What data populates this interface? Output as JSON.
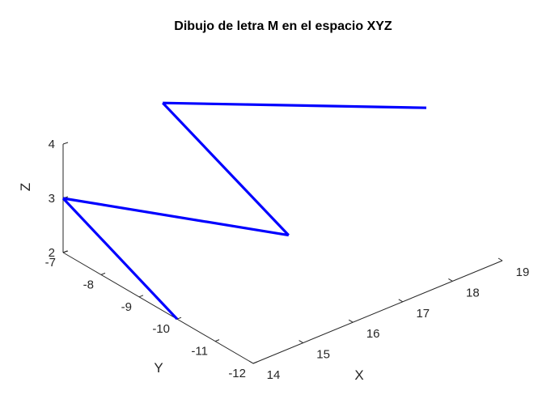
{
  "chart_data": {
    "type": "line",
    "title": "Dibujo de letra M en el espacio XYZ",
    "xlabel": "X",
    "ylabel": "Y",
    "zlabel": "Z",
    "view": "3d",
    "xlim": [
      14,
      19
    ],
    "ylim": [
      -12,
      -7
    ],
    "zlim": [
      2,
      4
    ],
    "xticks": [
      "14",
      "15",
      "16",
      "17",
      "18",
      "19"
    ],
    "yticks": [
      "-12",
      "-11",
      "-10",
      "-9",
      "-8",
      "-7"
    ],
    "zticks": [
      "2",
      "3",
      "4"
    ],
    "grid": false,
    "series": [
      {
        "color": "#0000FF",
        "points": [
          {
            "x": 14,
            "y": -10,
            "z": 2
          },
          {
            "x": 14,
            "y": -7,
            "z": 3
          },
          {
            "x": 17,
            "y": -9,
            "z": 2
          },
          {
            "x": 16,
            "y": -7,
            "z": 4
          },
          {
            "x": 19,
            "y": -10,
            "z": 4
          }
        ]
      }
    ]
  }
}
